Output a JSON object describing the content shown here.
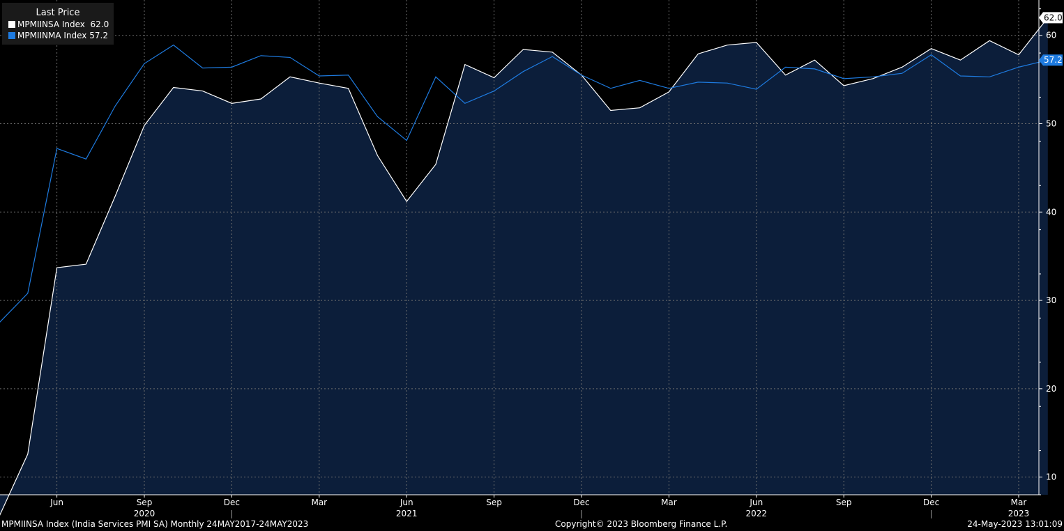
{
  "legend": {
    "header": "Last Price",
    "series": [
      {
        "name": "MPMIINSA Index",
        "value": "62.0",
        "color": "#ffffff"
      },
      {
        "name": "MPMIINMA Index",
        "value": "57.2",
        "color": "#1e7be0"
      }
    ]
  },
  "footer": {
    "left": "MPMIINSA Index (India Services PMI SA)  Monthly 24MAY2017-24MAY2023",
    "center": "Copyright© 2023 Bloomberg Finance L.P.",
    "right": "24-May-2023 13:01:09"
  },
  "chart_data": {
    "type": "line",
    "x": [
      "2020-04",
      "2020-05",
      "2020-06",
      "2020-07",
      "2020-08",
      "2020-09",
      "2020-10",
      "2020-11",
      "2020-12",
      "2021-01",
      "2021-02",
      "2021-03",
      "2021-04",
      "2021-05",
      "2021-06",
      "2021-07",
      "2021-08",
      "2021-09",
      "2021-10",
      "2021-11",
      "2021-12",
      "2022-01",
      "2022-02",
      "2022-03",
      "2022-04",
      "2022-05",
      "2022-06",
      "2022-07",
      "2022-08",
      "2022-09",
      "2022-10",
      "2022-11",
      "2022-12",
      "2023-01",
      "2023-02",
      "2023-03",
      "2023-04"
    ],
    "series": [
      {
        "name": "MPMIINSA Index",
        "color": "#ffffff",
        "area": true,
        "last_value": "62.0",
        "values": [
          5.4,
          12.6,
          33.7,
          34.1,
          41.8,
          49.8,
          54.1,
          53.7,
          52.3,
          52.8,
          55.3,
          54.6,
          54.0,
          46.4,
          41.2,
          45.4,
          56.7,
          55.2,
          58.4,
          58.1,
          55.5,
          51.5,
          51.8,
          53.6,
          57.9,
          58.9,
          59.2,
          55.5,
          57.2,
          54.3,
          55.1,
          56.4,
          58.5,
          57.2,
          59.4,
          57.8,
          62.0
        ]
      },
      {
        "name": "MPMIINMA Index",
        "color": "#1e7be0",
        "area": false,
        "last_value": "57.2",
        "values": [
          27.4,
          30.8,
          47.2,
          46.0,
          52.0,
          56.8,
          58.9,
          56.3,
          56.4,
          57.7,
          57.5,
          55.4,
          55.5,
          50.8,
          48.1,
          55.3,
          52.3,
          53.7,
          55.9,
          57.6,
          55.5,
          54.0,
          54.9,
          54.0,
          54.7,
          54.6,
          53.9,
          56.4,
          56.2,
          55.1,
          55.3,
          55.7,
          57.8,
          55.4,
          55.3,
          56.4,
          57.2
        ]
      }
    ],
    "x_tick_labels": [
      "Jun",
      "Sep",
      "Dec",
      "Mar",
      "Jun",
      "Sep",
      "Dec",
      "Mar",
      "Jun",
      "Sep",
      "Dec",
      "Mar"
    ],
    "x_tick_months": [
      "2020-06",
      "2020-09",
      "2020-12",
      "2021-03",
      "2021-06",
      "2021-09",
      "2021-12",
      "2022-03",
      "2022-06",
      "2022-09",
      "2022-12",
      "2023-03"
    ],
    "year_labels": [
      "2020",
      "2021",
      "2022",
      "2023"
    ],
    "year_label_months": [
      "2020-09",
      "2021-06",
      "2022-06",
      "2023-03"
    ],
    "year_divider_months": [
      "2020-12",
      "2021-12",
      "2022-12"
    ],
    "y_ticks": [
      10,
      20,
      30,
      40,
      50,
      60
    ],
    "ylim": [
      8,
      64
    ],
    "grid": true,
    "axis_side": "right",
    "legend_position": "top-left",
    "background": "#000000",
    "area_color": "#0c1e3a"
  }
}
